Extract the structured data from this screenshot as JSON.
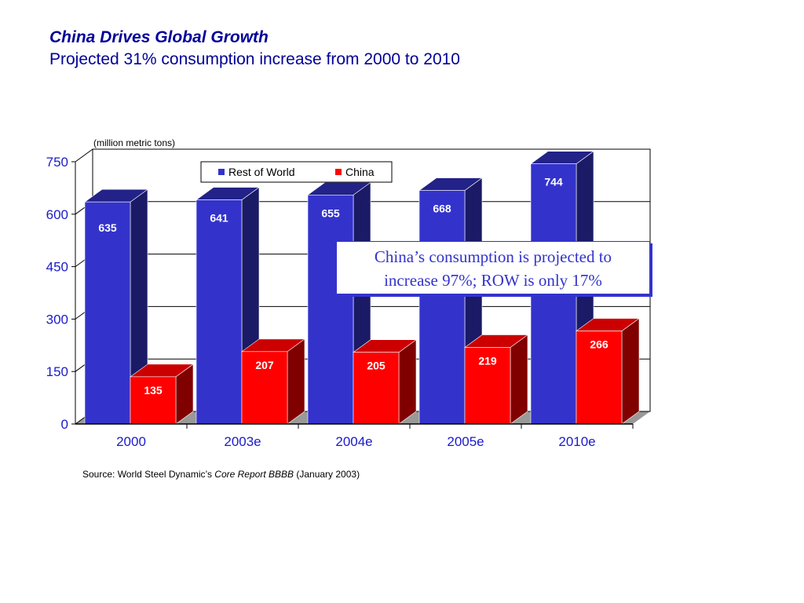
{
  "header": {
    "title": "China Drives Global Growth",
    "subtitle": "Projected 31% consumption increase from 2000 to 2010"
  },
  "callout": {
    "line1": "China’s consumption is projected to",
    "line2": "increase 97%; ROW is only 17%"
  },
  "source": {
    "prefix": "Source: World Steel Dynamic’s ",
    "report": "Core Report BBBB",
    "suffix": "  (January 2003)"
  },
  "colors": {
    "row_front": "#3333cc",
    "row_top": "#222288",
    "row_side": "#1a1a66",
    "china_front": "#ff0000",
    "china_top": "#cc0000",
    "china_side": "#800000",
    "axis_text": "#1a1acc",
    "title": "#000099"
  },
  "chart_data": {
    "type": "bar",
    "title": "",
    "unit_label": "(million metric tons)",
    "xlabel": "",
    "ylabel": "",
    "categories": [
      "2000",
      "2003e",
      "2004e",
      "2005e",
      "2010e"
    ],
    "series": [
      {
        "name": "Rest of World",
        "values": [
          635,
          641,
          655,
          668,
          744
        ]
      },
      {
        "name": "China",
        "values": [
          135,
          207,
          205,
          219,
          266
        ]
      }
    ],
    "ylim": [
      0,
      750
    ],
    "yticks": [
      0,
      150,
      300,
      450,
      600,
      750
    ],
    "grid": true,
    "legend": "top-center",
    "data_labels": true
  }
}
